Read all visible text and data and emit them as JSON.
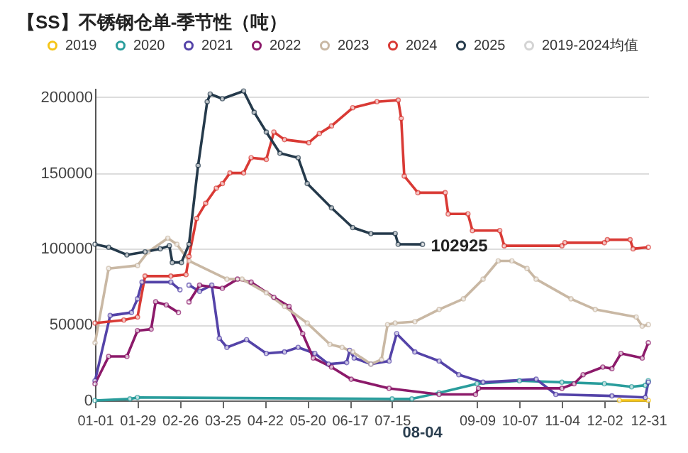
{
  "chart_data": {
    "type": "line",
    "title": "【SS】不锈钢仓单-季节性（吨）",
    "xlim": [
      "--01-01",
      "--12-31"
    ],
    "xticks": [
      {
        "value": "--01-01",
        "label": "01-01"
      },
      {
        "value": "--01-29",
        "label": "01-29"
      },
      {
        "value": "--02-26",
        "label": "02-26"
      },
      {
        "value": "--03-25",
        "label": "03-25"
      },
      {
        "value": "--04-22",
        "label": "04-22"
      },
      {
        "value": "--05-20",
        "label": "05-20"
      },
      {
        "value": "--06-17",
        "label": "06-17"
      },
      {
        "value": "--07-15",
        "label": "07-15"
      },
      {
        "value": "--09-09",
        "label": "09-09"
      },
      {
        "value": "--10-07",
        "label": "10-07"
      },
      {
        "value": "--11-04",
        "label": "11-04"
      },
      {
        "value": "--12-02",
        "label": "12-02"
      },
      {
        "value": "--12-31",
        "label": "12-31"
      }
    ],
    "ylim": [
      0,
      206000
    ],
    "yticks": [
      0,
      50000,
      100000,
      150000,
      200000
    ],
    "grid": "y",
    "legend": "top",
    "marker": "circle",
    "line_style": "solid",
    "annotations": [
      {
        "text": "102925",
        "x": "--08-04",
        "y": 102925
      },
      "08-04"
    ],
    "series": [
      {
        "name": "2019",
        "color": "#f5c518",
        "x": [
          "--12-12",
          "--12-31"
        ],
        "values": [
          0,
          0
        ]
      },
      {
        "name": "2020",
        "color": "#2a9d9c",
        "x": [
          "--01-01",
          "--01-24",
          "--01-29",
          "--07-15",
          "--07-28",
          "--08-15",
          "--09-09",
          "--10-07",
          "--11-04",
          "--12-02",
          "--12-20",
          "--12-29",
          "--12-31"
        ],
        "values": [
          0,
          1000,
          2000,
          1000,
          1000,
          5000,
          11000,
          13000,
          12000,
          11000,
          9000,
          10000,
          13000
        ]
      },
      {
        "name": "2021",
        "color": "#5443a8",
        "x": [
          "--01-01",
          "--01-11",
          "--01-25",
          "--01-29",
          "--02-01",
          "--02-20",
          "--02-26",
          "--02-28",
          "--03-03",
          "--03-10",
          "--03-18",
          "--03-23",
          "--03-28",
          "--04-10",
          "--04-23",
          "--05-05",
          "--05-14",
          "--05-25",
          "--06-03",
          "--06-15",
          "--06-17",
          "--06-20",
          "--07-01",
          "--07-13",
          "--07-18",
          "--07-30",
          "--08-15",
          "--08-28",
          "--09-13",
          "--10-18",
          "--10-31",
          "--12-07",
          "--12-29",
          "--12-31"
        ],
        "values": [
          13000,
          56000,
          58000,
          67000,
          78000,
          78000,
          73000,
          null,
          76000,
          72000,
          76000,
          41000,
          35000,
          40000,
          31000,
          32000,
          35000,
          31000,
          24000,
          25000,
          33000,
          28000,
          24000,
          26000,
          44000,
          32000,
          26000,
          17000,
          12000,
          14000,
          4000,
          3000,
          2000,
          12000
        ]
      },
      {
        "name": "2022",
        "color": "#8c1a6a",
        "x": [
          "--01-01",
          "--01-10",
          "--01-22",
          "--01-29",
          "--02-07",
          "--02-10",
          "--02-17",
          "--02-25",
          "--02-28",
          "--03-03",
          "--03-10",
          "--03-25",
          "--04-04",
          "--04-13",
          "--04-28",
          "--05-08",
          "--05-17",
          "--05-24",
          "--06-05",
          "--06-18",
          "--07-13",
          "--08-15",
          "--09-08",
          "--09-10",
          "--11-04",
          "--11-12",
          "--11-18",
          "--12-01",
          "--12-07",
          "--12-13",
          "--12-27",
          "--12-31"
        ],
        "values": [
          11000,
          29000,
          29000,
          46000,
          47000,
          65000,
          63000,
          58000,
          null,
          65000,
          76000,
          74000,
          80000,
          78000,
          68000,
          62000,
          44000,
          28000,
          22000,
          14000,
          8000,
          4000,
          4000,
          8000,
          8000,
          11000,
          17000,
          22000,
          21000,
          31000,
          28000,
          38000
        ]
      },
      {
        "name": "2023",
        "color": "#c9b8a4",
        "x": [
          "--01-01",
          "--01-10",
          "--01-29",
          "--02-05",
          "--02-18",
          "--02-24",
          "--03-03",
          "--03-28",
          "--04-07",
          "--04-23",
          "--05-05",
          "--05-20",
          "--06-04",
          "--06-12",
          "--06-19",
          "--07-01",
          "--07-08",
          "--07-12",
          "--07-17",
          "--07-30",
          "--08-15",
          "--08-31",
          "--09-13",
          "--09-23",
          "--10-02",
          "--10-12",
          "--10-18",
          "--11-10",
          "--11-26",
          "--12-23",
          "--12-27",
          "--12-31"
        ],
        "values": [
          38000,
          87000,
          89000,
          98000,
          107000,
          103000,
          92000,
          80000,
          80000,
          71000,
          62000,
          51000,
          37000,
          35000,
          32000,
          24000,
          27000,
          50000,
          51000,
          52000,
          60000,
          67000,
          80000,
          92000,
          92000,
          87000,
          80000,
          67000,
          60000,
          55000,
          49000,
          50000
        ]
      },
      {
        "name": "2024",
        "color": "#d93a35",
        "x": [
          "--01-01",
          "--01-20",
          "--01-29",
          "--02-03",
          "--02-20",
          "--03-01",
          "--03-03",
          "--03-08",
          "--03-14",
          "--03-21",
          "--03-25",
          "--03-30",
          "--04-08",
          "--04-13",
          "--04-23",
          "--04-28",
          "--05-05",
          "--05-21",
          "--05-28",
          "--06-05",
          "--06-19",
          "--07-05",
          "--07-19",
          "--07-21",
          "--07-23",
          "--08-01",
          "--08-19",
          "--08-21",
          "--09-03",
          "--09-06",
          "--09-24",
          "--09-27",
          "--11-04",
          "--11-06",
          "--12-02",
          "--12-04",
          "--12-19",
          "--12-21",
          "--12-31"
        ],
        "values": [
          51000,
          53000,
          55000,
          82000,
          82000,
          83000,
          95000,
          120000,
          130000,
          140000,
          143000,
          150000,
          150000,
          160000,
          159000,
          177000,
          172000,
          170000,
          176000,
          181000,
          193000,
          197000,
          198000,
          186000,
          148000,
          137000,
          137000,
          123000,
          123000,
          112000,
          112000,
          102000,
          102000,
          104000,
          104000,
          106000,
          106000,
          100000,
          101000
        ]
      },
      {
        "name": "2025",
        "color": "#253a4b",
        "x": [
          "--01-01",
          "--01-10",
          "--01-22",
          "--02-03",
          "--02-13",
          "--02-19",
          "--02-21",
          "--02-27",
          "--03-03",
          "--03-09",
          "--03-15",
          "--03-17",
          "--03-25",
          "--04-08",
          "--04-15",
          "--04-23",
          "--05-02",
          "--05-14",
          "--05-20",
          "--06-05",
          "--06-19",
          "--07-01",
          "--07-17",
          "--07-19",
          "--08-04"
        ],
        "values": [
          103000,
          101000,
          96000,
          98000,
          100000,
          102000,
          91000,
          91000,
          103000,
          155000,
          197000,
          202000,
          199000,
          204000,
          190000,
          177000,
          163000,
          160000,
          143000,
          127000,
          114000,
          110000,
          110000,
          103000,
          102925
        ]
      },
      {
        "name": "2019-2024均值",
        "color": "#d4d4d4"
      }
    ]
  }
}
